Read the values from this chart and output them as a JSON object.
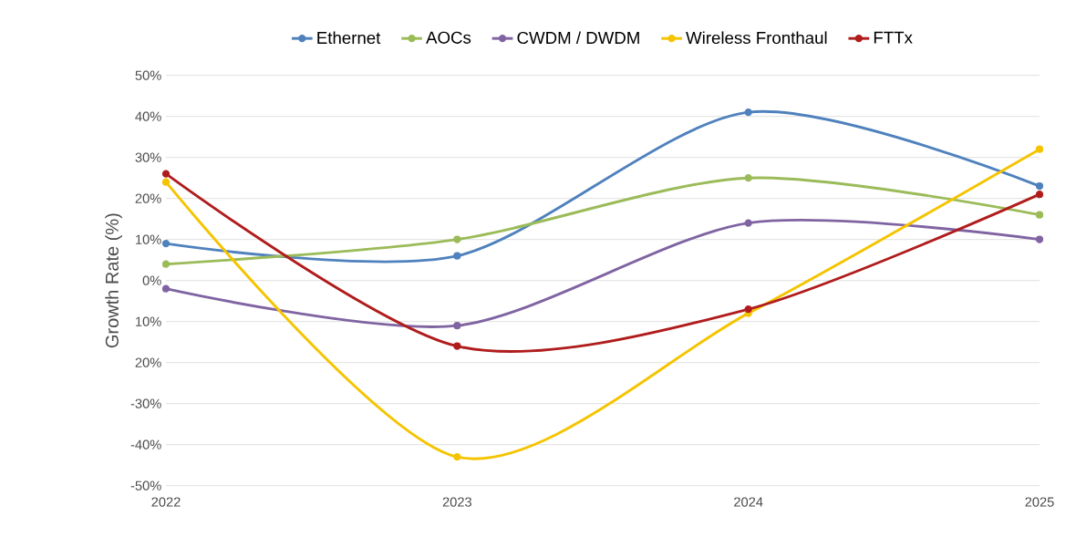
{
  "chart_data": {
    "type": "line",
    "ylabel": "Growth Rate (%)",
    "categories": [
      "2022",
      "2023",
      "2024",
      "2025"
    ],
    "ylim": [
      -50,
      50
    ],
    "yticks": [
      {
        "value": -50,
        "label": "-50%"
      },
      {
        "value": -40,
        "label": "-40%"
      },
      {
        "value": -30,
        "label": "-30%"
      },
      {
        "value": -20,
        "label": "20%"
      },
      {
        "value": -10,
        "label": "10%"
      },
      {
        "value": 0,
        "label": "0%"
      },
      {
        "value": 10,
        "label": "10%"
      },
      {
        "value": 20,
        "label": "20%"
      },
      {
        "value": 30,
        "label": "30%"
      },
      {
        "value": 40,
        "label": "40%"
      },
      {
        "value": 50,
        "label": "50%"
      }
    ],
    "grid": "y",
    "legend": "top",
    "marker": "circle",
    "series": [
      {
        "name": "Ethernet",
        "color": "#4f81bd",
        "values": [
          9,
          6,
          41,
          23
        ]
      },
      {
        "name": "AOCs",
        "color": "#9bbb59",
        "values": [
          4,
          10,
          25,
          16
        ]
      },
      {
        "name": "CWDM / DWDM",
        "color": "#8064a2",
        "values": [
          -2,
          -11,
          14,
          10
        ]
      },
      {
        "name": "Wireless Fronthaul",
        "color": "#f5c400",
        "values": [
          24,
          -43,
          -8,
          32
        ]
      },
      {
        "name": "FTTx",
        "color": "#b01c1c",
        "values": [
          26,
          -16,
          -7,
          21
        ]
      }
    ]
  }
}
